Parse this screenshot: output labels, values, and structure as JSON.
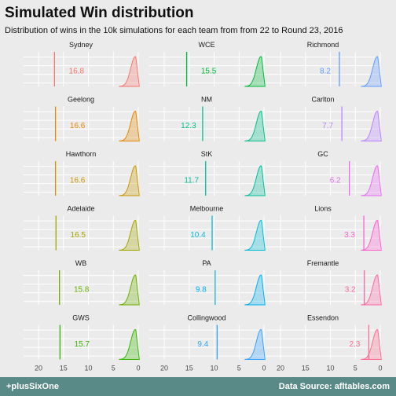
{
  "title": "Simulated Win distribution",
  "subtitle": "Distribution of wins in the 10k simulations for each team from from 22 to Round 23, 2016",
  "footer": {
    "left": "+plusSixOne",
    "right": "Data Source: afltables.com"
  },
  "chart_data": {
    "type": "area",
    "x_axis": {
      "ticks": [
        20,
        15,
        10,
        5,
        0
      ],
      "reversed": true,
      "xlim": [
        23,
        0
      ]
    },
    "grid": true,
    "panels": [
      {
        "team": "Sydney",
        "mean": 16.8,
        "color": "#F8766D"
      },
      {
        "team": "WCE",
        "mean": 15.5,
        "color": "#00BA38"
      },
      {
        "team": "Richmond",
        "mean": 8.2,
        "color": "#619CFF"
      },
      {
        "team": "Geelong",
        "mean": 16.6,
        "color": "#E58700"
      },
      {
        "team": "NM",
        "mean": 12.3,
        "color": "#00C08B"
      },
      {
        "team": "Carlton",
        "mean": 7.7,
        "color": "#B983FF"
      },
      {
        "team": "Hawthorn",
        "mean": 16.6,
        "color": "#C99800"
      },
      {
        "team": "StK",
        "mean": 11.7,
        "color": "#00BF9C"
      },
      {
        "team": "GC",
        "mean": 6.2,
        "color": "#E76BF3"
      },
      {
        "team": "Adelaide",
        "mean": 16.5,
        "color": "#A3A500"
      },
      {
        "team": "Melbourne",
        "mean": 10.4,
        "color": "#00BCD8"
      },
      {
        "team": "Lions",
        "mean": 3.3,
        "color": "#FD61D1"
      },
      {
        "team": "WB",
        "mean": 15.8,
        "color": "#6BB100"
      },
      {
        "team": "PA",
        "mean": 9.8,
        "color": "#00B0F6"
      },
      {
        "team": "Fremantle",
        "mean": 3.2,
        "color": "#FF67A4"
      },
      {
        "team": "GWS",
        "mean": 15.7,
        "color": "#39B600"
      },
      {
        "team": "Collingwood",
        "mean": 9.4,
        "color": "#35A2FF"
      },
      {
        "team": "Essendon",
        "mean": 2.3,
        "color": "#FF6C91"
      }
    ]
  }
}
